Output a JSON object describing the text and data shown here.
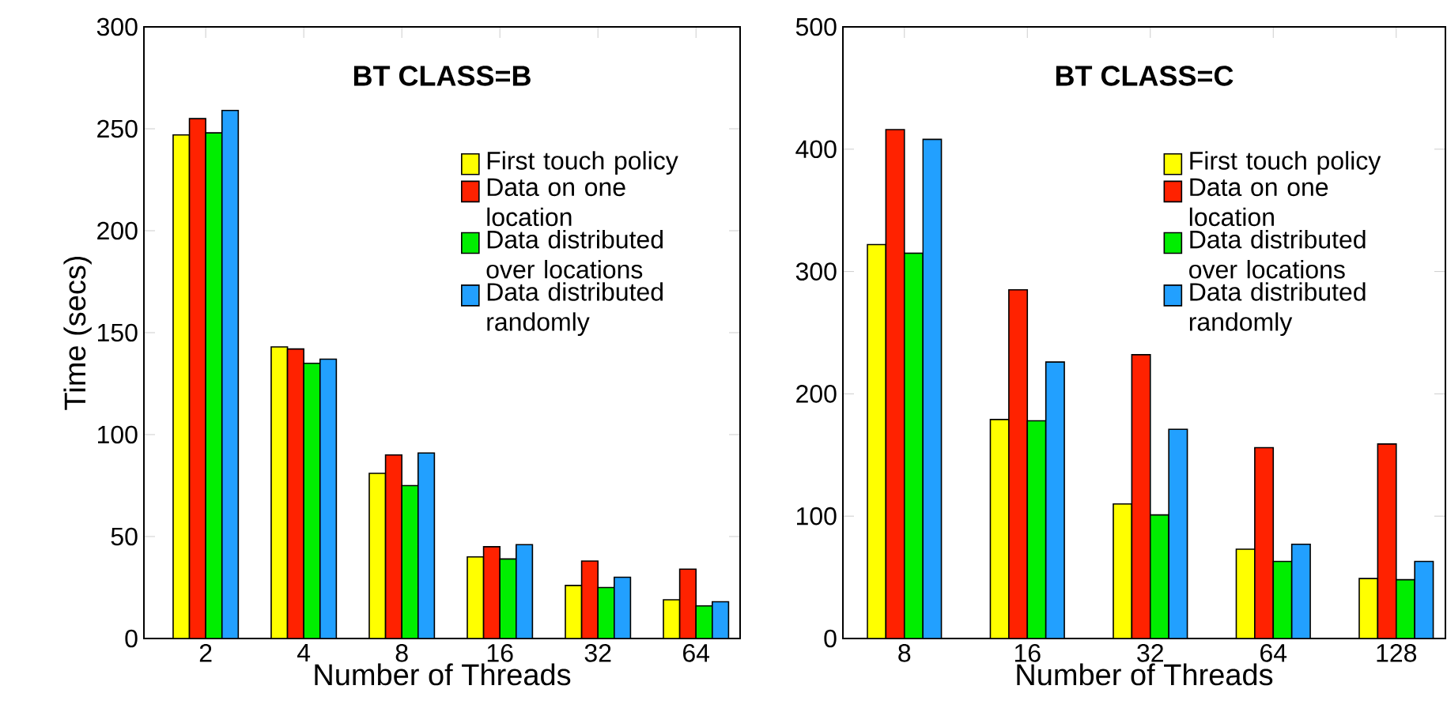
{
  "chart_data": [
    {
      "type": "bar",
      "title": "BT CLASS=B",
      "xlabel": "Number of Threads",
      "ylabel": "Time  (secs)",
      "categories": [
        "2",
        "4",
        "8",
        "16",
        "32",
        "64"
      ],
      "series": [
        {
          "name": "First touch policy",
          "color": "#ffff00",
          "values": [
            247,
            143,
            81,
            40,
            26,
            19
          ]
        },
        {
          "name": "Data on one location",
          "color": "#ff2200",
          "values": [
            255,
            142,
            90,
            45,
            38,
            34
          ]
        },
        {
          "name": "Data distributed over locations",
          "color": "#00ee00",
          "values": [
            248,
            135,
            75,
            39,
            25,
            16
          ]
        },
        {
          "name": "Data distributed randomly",
          "color": "#22a0ff",
          "values": [
            259,
            137,
            91,
            46,
            30,
            18
          ]
        }
      ],
      "ylim": [
        0,
        300
      ],
      "yticks": [
        0,
        50,
        100,
        150,
        200,
        250,
        300
      ],
      "legend": "top right"
    },
    {
      "type": "bar",
      "title": "BT CLASS=C",
      "xlabel": "Number of Threads",
      "categories": [
        "8",
        "16",
        "32",
        "64",
        "128"
      ],
      "series": [
        {
          "name": "First touch policy",
          "color": "#ffff00",
          "values": [
            322,
            179,
            110,
            73,
            49
          ]
        },
        {
          "name": "Data on one location",
          "color": "#ff2200",
          "values": [
            416,
            285,
            232,
            156,
            159
          ]
        },
        {
          "name": "Data distributed over locations",
          "color": "#00ee00",
          "values": [
            315,
            178,
            101,
            63,
            48
          ]
        },
        {
          "name": "Data distributed randomly",
          "color": "#22a0ff",
          "values": [
            408,
            226,
            171,
            77,
            63
          ]
        }
      ],
      "ylim": [
        0,
        500
      ],
      "yticks": [
        0,
        100,
        200,
        300,
        400,
        500
      ],
      "legend": "top right"
    }
  ]
}
